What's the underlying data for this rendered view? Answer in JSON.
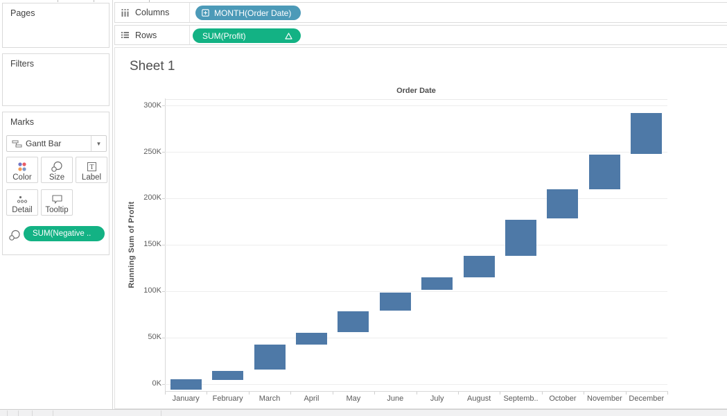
{
  "app": {
    "pill_blue": "#4c9ab8",
    "pill_green": "#13b284",
    "bar_color": "#4e79a7"
  },
  "sidebar": {
    "pages_label": "Pages",
    "filters_label": "Filters",
    "marks_label": "Marks",
    "mark_type": {
      "label": "Gantt Bar",
      "icon": "gantt-bar-icon"
    },
    "buttons": [
      {
        "label": "Color",
        "icon": "color-icon"
      },
      {
        "label": "Size",
        "icon": "size-icon"
      },
      {
        "label": "Label",
        "icon": "label-icon"
      },
      {
        "label": "Detail",
        "icon": "detail-icon"
      },
      {
        "label": "Tooltip",
        "icon": "tooltip-icon"
      }
    ],
    "size_pill": {
      "label": "SUM(Negative ..",
      "icon": "size-icon"
    }
  },
  "shelves": {
    "columns": {
      "label": "Columns",
      "pill": "MONTH(Order Date)",
      "pill_icon": "expand-plus-icon"
    },
    "rows": {
      "label": "Rows",
      "pill": "SUM(Profit)",
      "badge_icon": "delta-table-calc-icon"
    }
  },
  "sheet": {
    "title": "Sheet 1"
  },
  "chart_data": {
    "type": "bar",
    "subtype": "gantt-waterfall",
    "mark": "Gantt Bar",
    "title": "Order Date",
    "xlabel": "",
    "ylabel": "Running Sum of Profit",
    "units": "thousands (K) of Profit",
    "grid": "horizontal-light",
    "ylim_k": [
      -8,
      308
    ],
    "bar_color": "#4e79a7",
    "y_ticks": [
      {
        "k": 0,
        "label": "0K"
      },
      {
        "k": 50,
        "label": "50K"
      },
      {
        "k": 100,
        "label": "100K"
      },
      {
        "k": 150,
        "label": "150K"
      },
      {
        "k": 200,
        "label": "200K"
      },
      {
        "k": 250,
        "label": "250K"
      },
      {
        "k": 300,
        "label": "300K"
      }
    ],
    "months": [
      {
        "label": "January",
        "from_k": -6,
        "to_k": 5
      },
      {
        "label": "February",
        "from_k": 4,
        "to_k": 14
      },
      {
        "label": "March",
        "from_k": 15,
        "to_k": 42
      },
      {
        "label": "April",
        "from_k": 42,
        "to_k": 55
      },
      {
        "label": "May",
        "from_k": 56,
        "to_k": 78
      },
      {
        "label": "June",
        "from_k": 79,
        "to_k": 98
      },
      {
        "label": "July",
        "from_k": 101,
        "to_k": 115
      },
      {
        "label": "August",
        "from_k": 115,
        "to_k": 138
      },
      {
        "label": "Septemb..",
        "from_k": 138,
        "to_k": 177
      },
      {
        "label": "October",
        "from_k": 178,
        "to_k": 210
      },
      {
        "label": "November",
        "from_k": 210,
        "to_k": 247
      },
      {
        "label": "December",
        "from_k": 248,
        "to_k": 292
      }
    ]
  }
}
